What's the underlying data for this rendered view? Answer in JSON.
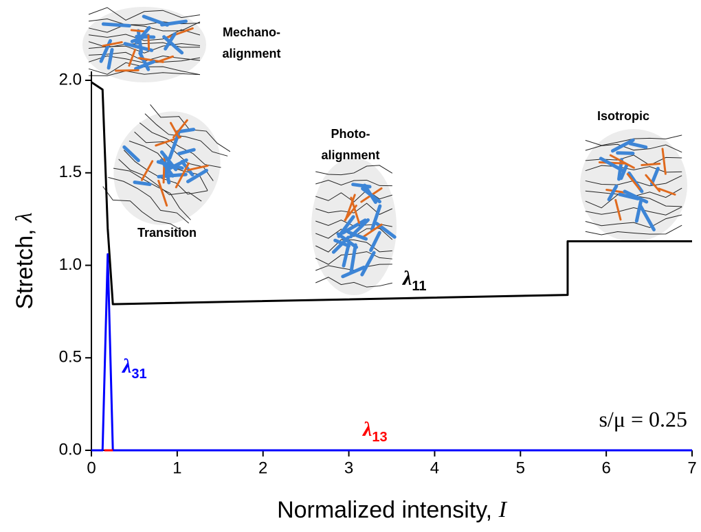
{
  "chart_data": {
    "type": "line",
    "xlabel": {
      "text": "Normalized intensity, ",
      "symbol": "I"
    },
    "ylabel": {
      "text": "Stretch, ",
      "symbol": "λ"
    },
    "xlim": [
      0,
      7
    ],
    "ylim": [
      0,
      2.05
    ],
    "xticks": [
      0,
      1,
      2,
      3,
      4,
      5,
      6,
      7
    ],
    "yticks": [
      {
        "value": 0,
        "label": "0.0"
      },
      0.5,
      {
        "value": 1,
        "label": "1.0"
      },
      1.5,
      {
        "value": 2,
        "label": "2.0"
      }
    ],
    "series": [
      {
        "label": {
          "base": "λ",
          "sub": "11"
        },
        "color": "#000000",
        "x": [
          0,
          0.13,
          0.19,
          0.25,
          5.55,
          5.55,
          7
        ],
        "values": [
          1.99,
          1.95,
          1.2,
          0.79,
          0.84,
          1.13,
          1.13
        ]
      },
      {
        "label": {
          "base": "λ",
          "sub": "31"
        },
        "color": "#0000ff",
        "x": [
          0,
          0.13,
          0.19,
          0.25,
          7
        ],
        "values": [
          0,
          0,
          1.06,
          0,
          0
        ]
      },
      {
        "label": {
          "base": "λ",
          "sub": "13"
        },
        "color": "#ff0000",
        "x": [
          0.15,
          0.25
        ],
        "values": [
          0,
          0
        ]
      }
    ],
    "annotation": "s/μ = 0.25",
    "illustrations": [
      {
        "lines": [
          "Mechano-",
          "alignment"
        ]
      },
      {
        "lines": [
          "Transition"
        ]
      },
      {
        "lines": [
          "Photo-",
          "alignment"
        ]
      },
      {
        "lines": [
          "Isotropic"
        ]
      }
    ]
  }
}
